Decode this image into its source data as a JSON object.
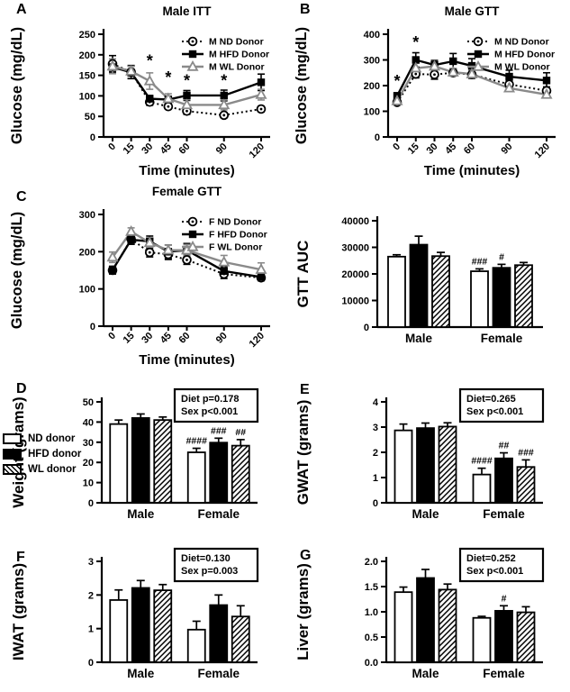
{
  "figure": {
    "background": "#ffffff",
    "panel_letters": {
      "A": "A",
      "B": "B",
      "C": "C",
      "D": "D",
      "E": "E",
      "F": "F",
      "G": "G"
    },
    "colors": {
      "black": "#000000",
      "gray": "#8a8a8a",
      "white": "#ffffff"
    }
  },
  "bar_legend": {
    "items": [
      {
        "label": "ND donor",
        "swatch": "white"
      },
      {
        "label": "HFD donor",
        "swatch": "black"
      },
      {
        "label": "WL donor",
        "swatch": "hatch"
      }
    ]
  },
  "chart_data": [
    {
      "type": "line",
      "panel": "A",
      "title": "Male ITT",
      "xlabel": "Time (minutes)",
      "ylabel": "Glucose (mg/dL)",
      "x": [
        0,
        15,
        30,
        45,
        60,
        90,
        120
      ],
      "ylim": [
        0,
        250
      ],
      "yticks": [
        "0",
        "50",
        "100",
        "150",
        "200",
        "250"
      ],
      "legend_position": "top-right",
      "grid": false,
      "series": [
        {
          "name": "M ND Donor",
          "marker": "circle-dot",
          "line": "dotted",
          "color": "#000000",
          "values": [
            178,
            158,
            85,
            74,
            63,
            53,
            68
          ],
          "err": [
            20,
            16,
            8,
            6,
            8,
            6,
            7
          ]
        },
        {
          "name": "M HFD Donor",
          "marker": "square-filled",
          "line": "solid",
          "color": "#000000",
          "values": [
            170,
            157,
            93,
            91,
            101,
            101,
            133
          ],
          "err": [
            12,
            15,
            8,
            8,
            12,
            13,
            20
          ]
        },
        {
          "name": "M WL Donor",
          "marker": "triangle-open",
          "line": "solid",
          "color": "#8a8a8a",
          "values": [
            172,
            160,
            136,
            93,
            78,
            78,
            103
          ],
          "err": [
            18,
            12,
            20,
            12,
            13,
            12,
            13
          ]
        }
      ],
      "stars": [
        {
          "x": 30,
          "y": 172
        },
        {
          "x": 45,
          "y": 132
        },
        {
          "x": 60,
          "y": 124
        },
        {
          "x": 90,
          "y": 124
        }
      ]
    },
    {
      "type": "line",
      "panel": "B",
      "title": "Male GTT",
      "xlabel": "Time (minutes)",
      "ylabel": "Glucose (mg/dL)",
      "x": [
        0,
        15,
        30,
        45,
        60,
        90,
        120
      ],
      "ylim": [
        0,
        400
      ],
      "yticks": [
        "0",
        "100",
        "200",
        "300",
        "400"
      ],
      "legend_position": "top-right",
      "grid": false,
      "series": [
        {
          "name": "M ND Donor",
          "marker": "circle-dot",
          "line": "dotted",
          "color": "#000000",
          "values": [
            135,
            245,
            243,
            250,
            243,
            205,
            180
          ],
          "err": [
            10,
            15,
            18,
            12,
            15,
            15,
            15
          ]
        },
        {
          "name": "M HFD Donor",
          "marker": "square-filled",
          "line": "solid",
          "color": "#000000",
          "values": [
            160,
            300,
            280,
            295,
            277,
            235,
            220
          ],
          "err": [
            12,
            28,
            18,
            30,
            28,
            25,
            30
          ]
        },
        {
          "name": "M WL Donor",
          "marker": "triangle-open",
          "line": "solid",
          "color": "#8a8a8a",
          "values": [
            140,
            268,
            275,
            252,
            245,
            190,
            165
          ],
          "err": [
            10,
            20,
            15,
            15,
            15,
            12,
            12
          ]
        }
      ],
      "stars": [
        {
          "x": 0,
          "y": 196
        },
        {
          "x": 15,
          "y": 348
        }
      ]
    },
    {
      "type": "line",
      "panel": "C",
      "title": "Female GTT",
      "xlabel": "Time (minutes)",
      "ylabel": "Glucose (mg/dL)",
      "x": [
        0,
        15,
        30,
        45,
        60,
        90,
        120
      ],
      "ylim": [
        0,
        300
      ],
      "yticks": [
        "0",
        "100",
        "200",
        "300"
      ],
      "legend_position": "top-right",
      "grid": false,
      "series": [
        {
          "name": "F ND Donor",
          "marker": "circle-dot",
          "line": "dotted",
          "color": "#000000",
          "values": [
            150,
            234,
            198,
            193,
            178,
            140,
            130
          ],
          "err": [
            10,
            14,
            12,
            14,
            12,
            12,
            8
          ]
        },
        {
          "name": "F HFD Donor",
          "marker": "square-filled",
          "line": "solid",
          "color": "#000000",
          "values": [
            151,
            232,
            228,
            200,
            204,
            148,
            132
          ],
          "err": [
            10,
            12,
            14,
            18,
            18,
            12,
            8
          ]
        },
        {
          "name": "F WL Donor",
          "marker": "triangle-open",
          "line": "solid",
          "color": "#8a8a8a",
          "values": [
            185,
            254,
            224,
            204,
            204,
            172,
            152
          ],
          "err": [
            14,
            10,
            12,
            14,
            15,
            18,
            18
          ]
        }
      ],
      "stars": []
    },
    {
      "type": "bar",
      "panel": "",
      "title": "",
      "ylabel": "GTT AUC",
      "categories": [
        "Male",
        "Female"
      ],
      "ylim": [
        0,
        40000
      ],
      "yticks": [
        "0",
        "10000",
        "20000",
        "30000",
        "40000"
      ],
      "grid": false,
      "series": [
        {
          "name": "ND donor",
          "fill": "white",
          "values": [
            26500,
            21000
          ],
          "err": [
            700,
            900
          ],
          "ann": [
            "",
            "###"
          ]
        },
        {
          "name": "HFD donor",
          "fill": "black",
          "values": [
            31000,
            22300
          ],
          "err": [
            3200,
            1300
          ],
          "ann": [
            "",
            "#"
          ]
        },
        {
          "name": "WL donor",
          "fill": "hatch",
          "values": [
            26700,
            23300
          ],
          "err": [
            1400,
            1000
          ],
          "ann": [
            "",
            ""
          ]
        }
      ],
      "stats": []
    },
    {
      "type": "bar",
      "panel": "D",
      "title": "",
      "ylabel": "Weight (grams)",
      "categories": [
        "Male",
        "Female"
      ],
      "ylim": [
        0,
        50
      ],
      "yticks": [
        "0",
        "10",
        "20",
        "30",
        "40",
        "50"
      ],
      "grid": false,
      "series": [
        {
          "name": "ND donor",
          "fill": "white",
          "values": [
            39,
            25
          ],
          "err": [
            2,
            2
          ],
          "ann": [
            "",
            "####"
          ]
        },
        {
          "name": "HFD donor",
          "fill": "black",
          "values": [
            42,
            29.8
          ],
          "err": [
            2,
            2.2
          ],
          "ann": [
            "",
            "###"
          ]
        },
        {
          "name": "WL donor",
          "fill": "hatch",
          "values": [
            41,
            28.3
          ],
          "err": [
            1.5,
            3
          ],
          "ann": [
            "",
            "##"
          ]
        }
      ],
      "stats": [
        "Diet p=0.178",
        "Sex p<0.001"
      ]
    },
    {
      "type": "bar",
      "panel": "E",
      "title": "",
      "ylabel": "GWAT (grams)",
      "categories": [
        "Male",
        "Female"
      ],
      "ylim": [
        0,
        4
      ],
      "yticks": [
        "0",
        "1",
        "2",
        "3",
        "4"
      ],
      "grid": false,
      "series": [
        {
          "name": "ND donor",
          "fill": "white",
          "values": [
            2.87,
            1.12
          ],
          "err": [
            0.25,
            0.25
          ],
          "ann": [
            "",
            "####"
          ]
        },
        {
          "name": "HFD donor",
          "fill": "black",
          "values": [
            2.96,
            1.76
          ],
          "err": [
            0.2,
            0.22
          ],
          "ann": [
            "",
            "##"
          ]
        },
        {
          "name": "WL donor",
          "fill": "hatch",
          "values": [
            3.02,
            1.42
          ],
          "err": [
            0.15,
            0.28
          ],
          "ann": [
            "",
            "###"
          ]
        }
      ],
      "stats": [
        "Diet=0.265",
        "Sex p<0.001"
      ]
    },
    {
      "type": "bar",
      "panel": "F",
      "title": "",
      "ylabel": "IWAT (grams)",
      "categories": [
        "Male",
        "Female"
      ],
      "ylim": [
        0,
        3
      ],
      "yticks": [
        "0",
        "1",
        "2",
        "3"
      ],
      "grid": false,
      "series": [
        {
          "name": "ND donor",
          "fill": "white",
          "values": [
            1.85,
            0.97
          ],
          "err": [
            0.3,
            0.25
          ],
          "ann": [
            "",
            ""
          ]
        },
        {
          "name": "HFD donor",
          "fill": "black",
          "values": [
            2.21,
            1.7
          ],
          "err": [
            0.22,
            0.3
          ],
          "ann": [
            "",
            ""
          ]
        },
        {
          "name": "WL donor",
          "fill": "hatch",
          "values": [
            2.14,
            1.36
          ],
          "err": [
            0.17,
            0.32
          ],
          "ann": [
            "",
            ""
          ]
        }
      ],
      "stats": [
        "Diet=0.130",
        "Sex p=0.003"
      ]
    },
    {
      "type": "bar",
      "panel": "G",
      "title": "",
      "ylabel": "Liver (grams)",
      "categories": [
        "Male",
        "Female"
      ],
      "ylim": [
        0,
        2
      ],
      "yticks": [
        "0.0",
        "0.5",
        "1.0",
        "1.5",
        "2.0"
      ],
      "grid": false,
      "series": [
        {
          "name": "ND donor",
          "fill": "white",
          "values": [
            1.39,
            0.88
          ],
          "err": [
            0.1,
            0.03
          ],
          "ann": [
            "",
            ""
          ]
        },
        {
          "name": "HFD donor",
          "fill": "black",
          "values": [
            1.67,
            1.02
          ],
          "err": [
            0.17,
            0.1
          ],
          "ann": [
            "",
            "#"
          ]
        },
        {
          "name": "WL donor",
          "fill": "hatch",
          "values": [
            1.44,
            0.99
          ],
          "err": [
            0.11,
            0.11
          ],
          "ann": [
            "",
            ""
          ]
        }
      ],
      "stats": [
        "Diet=0.252",
        "Sex p<0.001"
      ]
    }
  ]
}
